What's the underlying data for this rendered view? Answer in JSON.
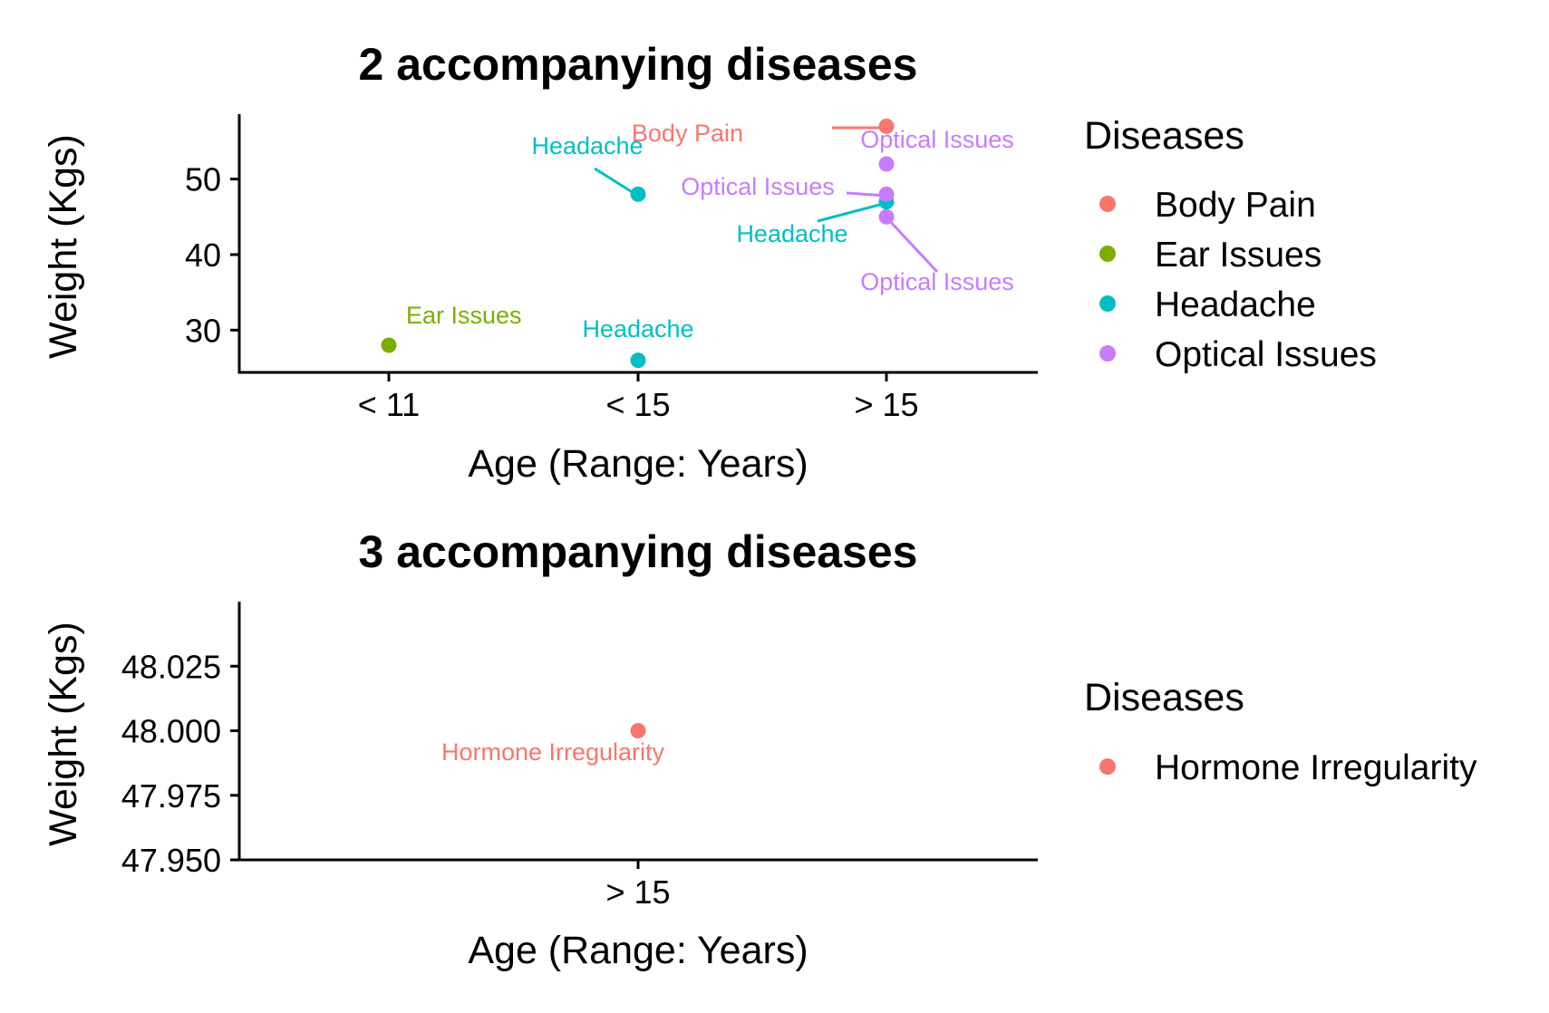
{
  "chart_data": [
    {
      "type": "scatter",
      "title": "2 accompanying diseases",
      "xlabel": "Age (Range: Years)",
      "ylabel": "Weight (Kgs)",
      "categories": [
        "< 11",
        "< 15",
        "> 15"
      ],
      "y_ticks": [
        30,
        40,
        50
      ],
      "ylim": [
        24.4,
        58.6
      ],
      "grid": false,
      "legend": {
        "title": "Diseases",
        "position": "right",
        "entries": [
          {
            "label": "Body Pain",
            "color": "#F8766D"
          },
          {
            "label": "Ear Issues",
            "color": "#7CAE00"
          },
          {
            "label": "Headache",
            "color": "#00BFC4"
          },
          {
            "label": "Optical Issues",
            "color": "#C77CFF"
          }
        ]
      },
      "points": [
        {
          "x": "> 15",
          "y": 57,
          "disease": "Body Pain",
          "label": "Body Pain",
          "color": "#F8766D"
        },
        {
          "x": "< 11",
          "y": 28,
          "disease": "Ear Issues",
          "label": "Ear Issues",
          "color": "#7CAE00"
        },
        {
          "x": "< 15",
          "y": 48,
          "disease": "Headache",
          "label": "Headache",
          "color": "#00BFC4"
        },
        {
          "x": "< 15",
          "y": 26,
          "disease": "Headache",
          "label": "Headache",
          "color": "#00BFC4"
        },
        {
          "x": "> 15",
          "y": 47,
          "disease": "Headache",
          "label": "Headache",
          "color": "#00BFC4"
        },
        {
          "x": "> 15",
          "y": 52,
          "disease": "Optical Issues",
          "label": "Optical Issues",
          "color": "#C77CFF"
        },
        {
          "x": "> 15",
          "y": 48,
          "disease": "Optical Issues",
          "label": "Optical Issues",
          "color": "#C77CFF"
        },
        {
          "x": "> 15",
          "y": 45,
          "disease": "Optical Issues",
          "label": "Optical Issues",
          "color": "#C77CFF"
        }
      ]
    },
    {
      "type": "scatter",
      "title": "3 accompanying diseases",
      "xlabel": "Age (Range: Years)",
      "ylabel": "Weight (Kgs)",
      "categories": [
        "> 15"
      ],
      "y_ticks": [
        "47.950",
        "47.975",
        "48.000",
        "48.025"
      ],
      "ylim": [
        47.95,
        48.05
      ],
      "grid": false,
      "legend": {
        "title": "Diseases",
        "position": "right",
        "entries": [
          {
            "label": "Hormone Irregularity",
            "color": "#F8766D"
          }
        ]
      },
      "points": [
        {
          "x": "> 15",
          "y": 48.0,
          "disease": "Hormone Irregularity",
          "label": "Hormone Irregularity",
          "color": "#F8766D"
        }
      ]
    }
  ]
}
